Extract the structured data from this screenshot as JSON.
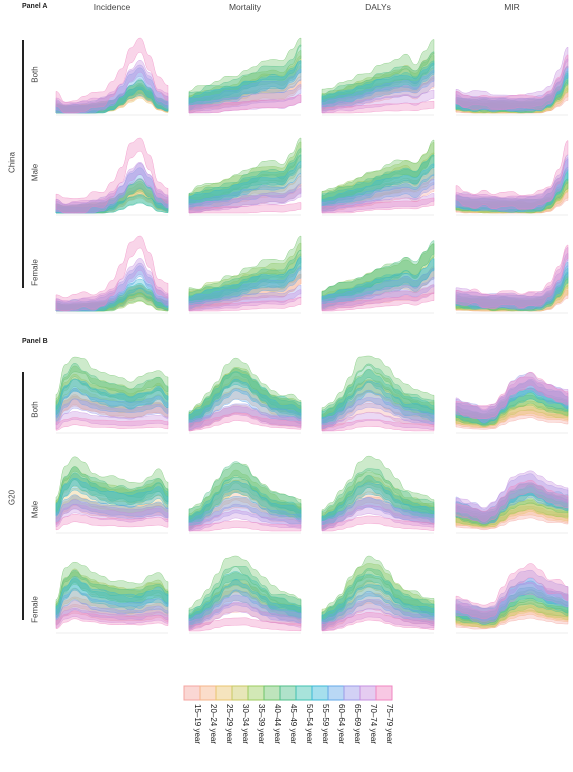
{
  "panels": [
    {
      "label": "Panel A",
      "group": "China"
    },
    {
      "label": "Panel B",
      "group": "G20"
    }
  ],
  "columns": [
    "Incidence",
    "Mortality",
    "DALYs",
    "MIR"
  ],
  "rows": [
    "Both",
    "Male",
    "Female"
  ],
  "legend": {
    "items": [
      {
        "label": "15–19 year",
        "color": "#f4a6a0"
      },
      {
        "label": "20–24 year",
        "color": "#f6b48a"
      },
      {
        "label": "25–29 year",
        "color": "#e9c46f"
      },
      {
        "label": "30–34 year",
        "color": "#c9c862"
      },
      {
        "label": "35–39 year",
        "color": "#9ccb5e"
      },
      {
        "label": "40–44 year",
        "color": "#6fc36a"
      },
      {
        "label": "45–49 year",
        "color": "#4fbf8a"
      },
      {
        "label": "50–54 year",
        "color": "#3fc0b0"
      },
      {
        "label": "55–59 year",
        "color": "#3ab8d6"
      },
      {
        "label": "60–64 year",
        "color": "#63a8e8"
      },
      {
        "label": "65–69 year",
        "color": "#9c9ae8"
      },
      {
        "label": "70–74 year",
        "color": "#c58fe0"
      },
      {
        "label": "75–79 year",
        "color": "#ef86c0"
      }
    ]
  },
  "chart_data": {
    "type": "area",
    "shapes": {
      "A": {
        "Incidence": [
          0.15,
          0.08,
          0.1,
          0.12,
          0.15,
          0.2,
          0.3,
          0.5,
          0.8,
          0.95,
          0.7,
          0.35,
          0.25
        ],
        "Mortality": [
          0.2,
          0.25,
          0.3,
          0.32,
          0.38,
          0.42,
          0.5,
          0.55,
          0.6,
          0.62,
          0.6,
          0.75,
          0.95
        ],
        "DALYs": [
          0.2,
          0.25,
          0.32,
          0.35,
          0.42,
          0.48,
          0.55,
          0.6,
          0.65,
          0.7,
          0.62,
          0.8,
          0.95
        ],
        "MIR": [
          0.25,
          0.22,
          0.2,
          0.2,
          0.18,
          0.18,
          0.17,
          0.18,
          0.18,
          0.2,
          0.3,
          0.55,
          0.9
        ]
      },
      "B": {
        "Incidence": [
          0.4,
          0.8,
          0.95,
          0.85,
          0.75,
          0.7,
          0.65,
          0.62,
          0.6,
          0.62,
          0.7,
          0.75,
          0.6
        ],
        "Mortality": [
          0.2,
          0.3,
          0.45,
          0.65,
          0.85,
          0.95,
          0.9,
          0.75,
          0.6,
          0.5,
          0.45,
          0.4,
          0.35
        ],
        "DALYs": [
          0.2,
          0.3,
          0.45,
          0.65,
          0.85,
          0.95,
          0.9,
          0.75,
          0.6,
          0.5,
          0.45,
          0.4,
          0.35
        ],
        "MIR": [
          0.45,
          0.4,
          0.35,
          0.3,
          0.35,
          0.55,
          0.75,
          0.85,
          0.9,
          0.8,
          0.7,
          0.65,
          0.6
        ]
      }
    }
  }
}
